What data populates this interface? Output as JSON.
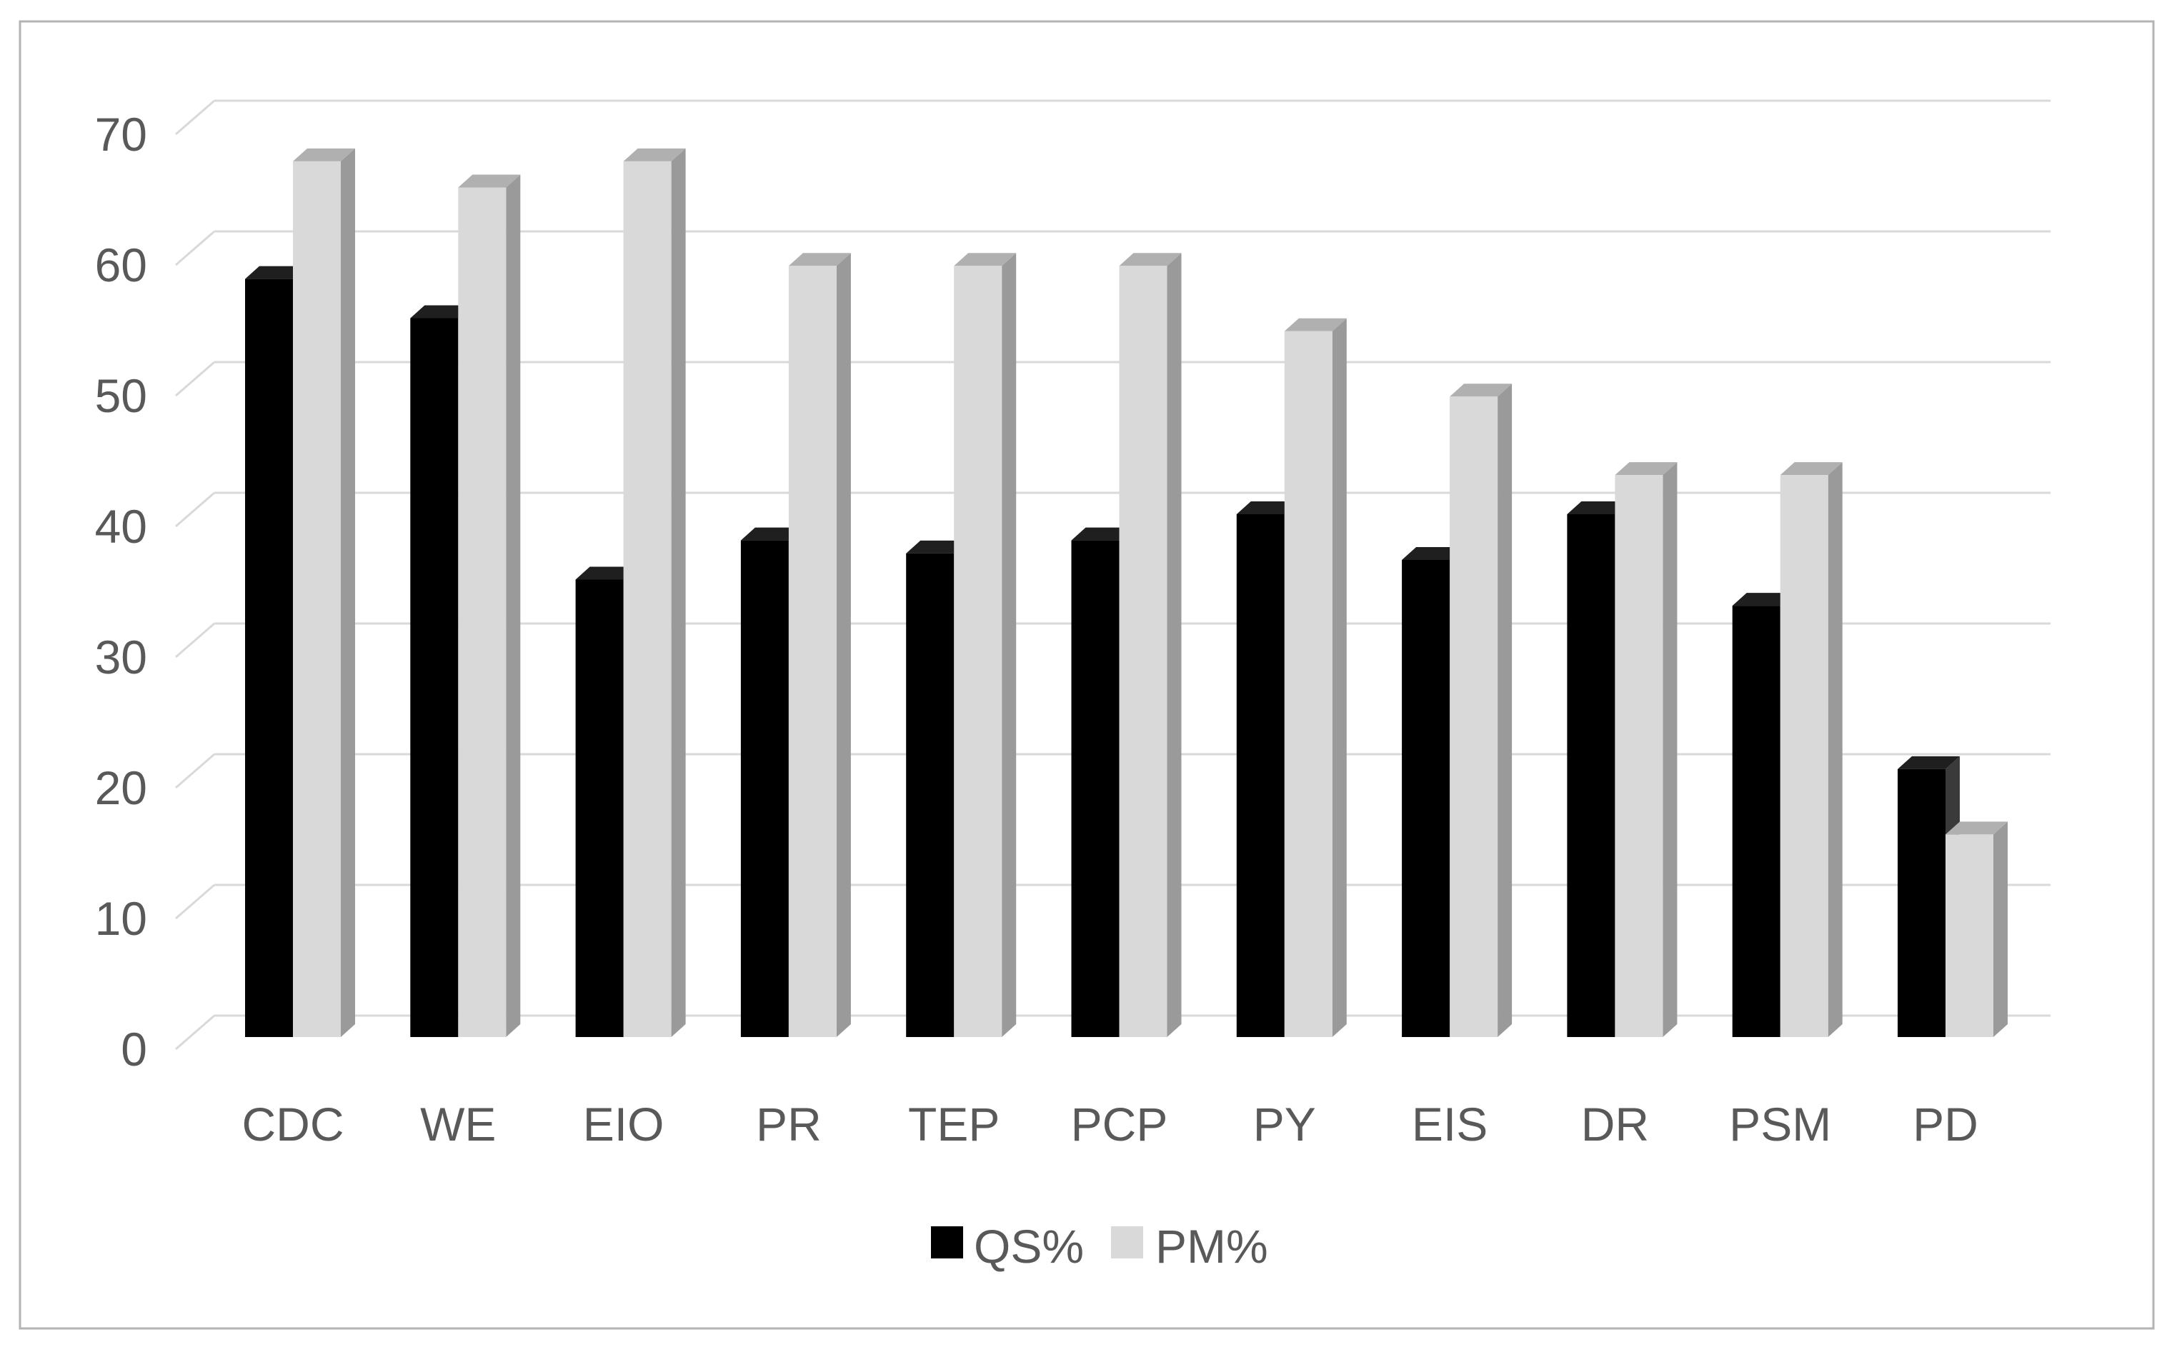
{
  "chart_data": {
    "type": "bar",
    "variant": "3d-clustered-column",
    "title": "",
    "xlabel": "",
    "ylabel": "",
    "categories": [
      "CDC",
      "WE",
      "EIO",
      "PR",
      "TEP",
      "PCP",
      "PY",
      "EIS",
      "DR",
      "PSM",
      "PD"
    ],
    "series": [
      {
        "name": "QS%",
        "values": [
          58,
          55,
          35,
          38,
          37,
          38,
          40,
          36.5,
          40,
          33,
          20.5
        ]
      },
      {
        "name": "PM%",
        "values": [
          67,
          65,
          67,
          59,
          59,
          59,
          54,
          49,
          43,
          43,
          15.5
        ]
      }
    ],
    "ylim": [
      0,
      70
    ],
    "yticks": [
      0,
      10,
      20,
      30,
      40,
      50,
      60,
      70
    ],
    "grid": true,
    "legend_position": "bottom",
    "legend": [
      "QS%",
      "PM%"
    ]
  },
  "colors": {
    "background": "#ffffff",
    "chart_border": "#b3b3b3",
    "gridline": "#d9d9d9",
    "tick_text": "#595959",
    "label_text": "#595959",
    "legend_text": "#595959",
    "qs_front": "#000000",
    "qs_top": "#1f1f1f",
    "qs_side": "#3a3a3a",
    "pm_front": "#d9d9d9",
    "pm_top": "#b0b0b0",
    "pm_side": "#9a9a9a"
  }
}
